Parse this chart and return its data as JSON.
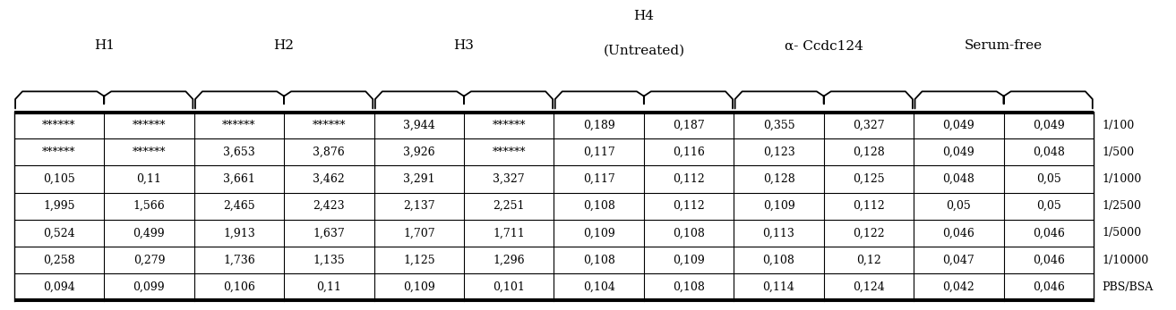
{
  "col_groups": [
    {
      "label": "H1",
      "label2": "",
      "cols": [
        0,
        1
      ]
    },
    {
      "label": "H2",
      "label2": "",
      "cols": [
        2,
        3
      ]
    },
    {
      "label": "H3",
      "label2": "",
      "cols": [
        4,
        5
      ]
    },
    {
      "label": "H4",
      "label2": "(Untreated)",
      "cols": [
        6,
        7
      ]
    },
    {
      "label": "α- Ccdc124",
      "label2": "",
      "cols": [
        8,
        9
      ]
    },
    {
      "label": "Serum-free",
      "label2": "",
      "cols": [
        10,
        11
      ]
    }
  ],
  "row_labels": [
    "1/100",
    "1/500",
    "1/1000",
    "1/2500",
    "1/5000",
    "1/10000",
    "PBS/BSA"
  ],
  "table_data": [
    [
      "******",
      "******",
      "******",
      "******",
      "3,944",
      "******",
      "0,189",
      "0,187",
      "0,355",
      "0,327",
      "0,049",
      "0,049"
    ],
    [
      "******",
      "******",
      "3,653",
      "3,876",
      "3,926",
      "******",
      "0,117",
      "0,116",
      "0,123",
      "0,128",
      "0,049",
      "0,048"
    ],
    [
      "0,105",
      "0,11",
      "3,661",
      "3,462",
      "3,291",
      "3,327",
      "0,117",
      "0,112",
      "0,128",
      "0,125",
      "0,048",
      "0,05"
    ],
    [
      "1,995",
      "1,566",
      "2,465",
      "2,423",
      "2,137",
      "2,251",
      "0,108",
      "0,112",
      "0,109",
      "0,112",
      "0,05",
      "0,05"
    ],
    [
      "0,524",
      "0,499",
      "1,913",
      "1,637",
      "1,707",
      "1,711",
      "0,109",
      "0,108",
      "0,113",
      "0,122",
      "0,046",
      "0,046"
    ],
    [
      "0,258",
      "0,279",
      "1,736",
      "1,135",
      "1,125",
      "1,296",
      "0,108",
      "0,109",
      "0,108",
      "0,12",
      "0,047",
      "0,046"
    ],
    [
      "0,094",
      "0,099",
      "0,106",
      "0,11",
      "0,109",
      "0,101",
      "0,104",
      "0,108",
      "0,114",
      "0,124",
      "0,042",
      "0,046"
    ]
  ],
  "num_cols": 12,
  "num_rows": 7,
  "font_size": 9.0,
  "header_font_size": 11,
  "row_label_font_size": 9.0,
  "bg_color": "white",
  "line_color": "black",
  "text_color": "black"
}
